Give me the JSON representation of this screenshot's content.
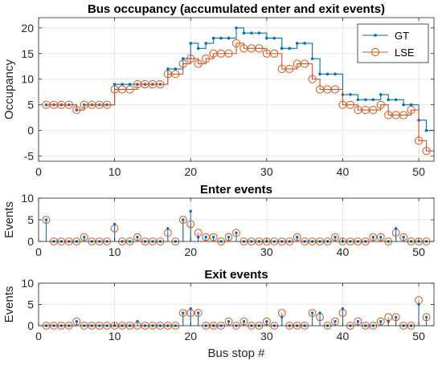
{
  "colors": {
    "gt": "#0072BD",
    "lse": "#D95319",
    "grid": "#e6e6e6",
    "axis": "#262626"
  },
  "chart_data": [
    {
      "type": "line",
      "subtype": "stairs",
      "title": "Bus occupancy (accumulated enter and exit events)",
      "xlabel": "",
      "ylabel": "Occupancy",
      "xlim": [
        0,
        52
      ],
      "ylim": [
        -6,
        22
      ],
      "xticks": [
        0,
        10,
        20,
        30,
        40,
        50
      ],
      "yticks": [
        -5,
        0,
        5,
        10,
        15,
        20
      ],
      "grid": true,
      "legend": "top-right",
      "x": [
        1,
        2,
        3,
        4,
        5,
        6,
        7,
        8,
        9,
        10,
        11,
        12,
        13,
        14,
        15,
        16,
        17,
        18,
        19,
        20,
        21,
        22,
        23,
        24,
        25,
        26,
        27,
        28,
        29,
        30,
        31,
        32,
        33,
        34,
        35,
        36,
        37,
        38,
        39,
        40,
        41,
        42,
        43,
        44,
        45,
        46,
        47,
        48,
        49,
        50,
        51
      ],
      "series": [
        {
          "name": "GT",
          "values": [
            5,
            5,
            5,
            5,
            4,
            5,
            5,
            5,
            5,
            9,
            9,
            9,
            9,
            9,
            9,
            9,
            12,
            12,
            14,
            17,
            16,
            17,
            18,
            18,
            18,
            20,
            19,
            19,
            19,
            18,
            18,
            16,
            16,
            17,
            17,
            14,
            11,
            11,
            11,
            7,
            7,
            6,
            6,
            6,
            7,
            6,
            6,
            5,
            5,
            2,
            0
          ]
        },
        {
          "name": "LSE",
          "values": [
            5,
            5,
            5,
            5,
            4,
            5,
            5,
            5,
            5,
            8,
            8,
            8,
            9,
            9,
            9,
            9,
            11,
            11,
            13,
            14,
            13,
            14,
            15,
            15,
            15,
            17,
            16,
            16,
            16,
            15,
            15,
            12,
            12,
            13,
            13,
            10,
            8,
            8,
            8,
            5,
            5,
            4,
            4,
            4,
            5,
            3,
            3,
            3,
            4,
            -2,
            -4
          ]
        }
      ]
    },
    {
      "type": "stem",
      "title": "Enter events",
      "xlabel": "",
      "ylabel": "Events",
      "xlim": [
        0,
        52
      ],
      "ylim": [
        0,
        10
      ],
      "xticks": [
        0,
        10,
        20,
        30,
        40,
        50
      ],
      "yticks": [
        0,
        5,
        10
      ],
      "grid": true,
      "x": [
        1,
        2,
        3,
        4,
        5,
        6,
        7,
        8,
        9,
        10,
        11,
        12,
        13,
        14,
        15,
        16,
        17,
        18,
        19,
        20,
        21,
        22,
        23,
        24,
        25,
        26,
        27,
        28,
        29,
        30,
        31,
        32,
        33,
        34,
        35,
        36,
        37,
        38,
        39,
        40,
        41,
        42,
        43,
        44,
        45,
        46,
        47,
        48,
        49,
        50,
        51
      ],
      "series": [
        {
          "name": "GT",
          "values": [
            5,
            0,
            0,
            0,
            0,
            1,
            0,
            0,
            0,
            4,
            0,
            0,
            1,
            0,
            0,
            0,
            3,
            0,
            5,
            7,
            1,
            1,
            1,
            0,
            1,
            2,
            0,
            0,
            0,
            0,
            0,
            0,
            0,
            1,
            0,
            0,
            0,
            0,
            1,
            0,
            0,
            0,
            0,
            1,
            1,
            0,
            3,
            1,
            0,
            0,
            0
          ]
        },
        {
          "name": "LSE",
          "values": [
            5,
            0,
            0,
            0,
            0,
            1,
            0,
            0,
            0,
            3,
            0,
            0,
            1,
            0,
            0,
            0,
            2,
            0,
            5,
            4,
            2,
            1,
            1,
            0,
            1,
            2,
            0,
            0,
            0,
            0,
            0,
            0,
            0,
            1,
            0,
            0,
            0,
            0,
            1,
            0,
            0,
            0,
            0,
            1,
            1,
            0,
            2,
            1,
            0,
            0,
            0
          ]
        }
      ]
    },
    {
      "type": "stem",
      "title": "Exit events",
      "xlabel": "Bus stop #",
      "ylabel": "Events",
      "xlim": [
        0,
        52
      ],
      "ylim": [
        0,
        10
      ],
      "xticks": [
        0,
        10,
        20,
        30,
        40,
        50
      ],
      "yticks": [
        0,
        5,
        10
      ],
      "grid": true,
      "x": [
        1,
        2,
        3,
        4,
        5,
        6,
        7,
        8,
        9,
        10,
        11,
        12,
        13,
        14,
        15,
        16,
        17,
        18,
        19,
        20,
        21,
        22,
        23,
        24,
        25,
        26,
        27,
        28,
        29,
        30,
        31,
        32,
        33,
        34,
        35,
        36,
        37,
        38,
        39,
        40,
        41,
        42,
        43,
        44,
        45,
        46,
        47,
        48,
        49,
        50,
        51
      ],
      "series": [
        {
          "name": "GT",
          "values": [
            0,
            0,
            0,
            0,
            1,
            0,
            0,
            0,
            0,
            0,
            0,
            0,
            1,
            0,
            0,
            0,
            0,
            0,
            3,
            4,
            3,
            0,
            0,
            0,
            1,
            0,
            1,
            0,
            0,
            1,
            0,
            2,
            0,
            0,
            0,
            3,
            3,
            0,
            1,
            4,
            0,
            1,
            0,
            0,
            1,
            1,
            2,
            0,
            0,
            5,
            2
          ]
        },
        {
          "name": "LSE",
          "values": [
            0,
            0,
            0,
            0,
            1,
            0,
            0,
            0,
            0,
            0,
            0,
            0,
            0,
            0,
            0,
            0,
            0,
            0,
            3,
            3,
            3,
            0,
            0,
            0,
            1,
            0,
            1,
            0,
            0,
            1,
            0,
            3,
            0,
            0,
            0,
            3,
            2,
            0,
            1,
            3,
            0,
            1,
            0,
            0,
            1,
            2,
            2,
            0,
            0,
            6,
            2
          ]
        }
      ]
    }
  ]
}
